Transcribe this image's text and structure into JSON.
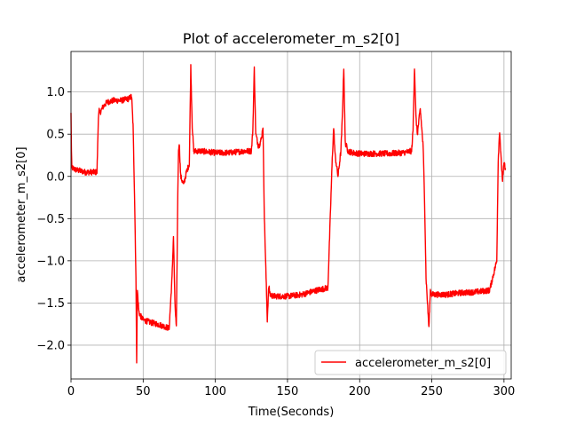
{
  "chart_data": {
    "type": "line",
    "title": "Plot of accelerometer_m_s2[0]",
    "xlabel": "Time(Seconds)",
    "ylabel": "accelerometer_m_s2[0]",
    "xlim": [
      0,
      305
    ],
    "ylim": [
      -2.4,
      1.48
    ],
    "xticks": [
      0,
      50,
      100,
      150,
      200,
      250,
      300
    ],
    "yticks": [
      -2.0,
      -1.5,
      -1.0,
      -0.5,
      0.0,
      0.5,
      1.0
    ],
    "xtick_labels": [
      "0",
      "50",
      "100",
      "150",
      "200",
      "250",
      "300"
    ],
    "ytick_labels": [
      "−2.0",
      "−1.5",
      "−1.0",
      "−0.5",
      "0.0",
      "0.5",
      "1.0"
    ],
    "grid": true,
    "legend_position": "bottom-right",
    "series": [
      {
        "name": "accelerometer_m_s2[0]",
        "color": "#ff0000",
        "noise": 0.035,
        "x": [
          0,
          0.3,
          0.6,
          1,
          3,
          10,
          18,
          19,
          19.5,
          20,
          22,
          25,
          30,
          35,
          40,
          42,
          43,
          44,
          45,
          45.5,
          46,
          47,
          48,
          50,
          55,
          60,
          65,
          68,
          70,
          71,
          72,
          73,
          74,
          74.5,
          75,
          76,
          78,
          80,
          82,
          83,
          84,
          85,
          90,
          100,
          110,
          120,
          125,
          126,
          127,
          128,
          130,
          132,
          133,
          134,
          135,
          136,
          137,
          138,
          140,
          150,
          160,
          170,
          178,
          180,
          181,
          182,
          183,
          185,
          187,
          188,
          189,
          190,
          192,
          195,
          200,
          210,
          220,
          230,
          236,
          237,
          238,
          239,
          240,
          242,
          244,
          245,
          246,
          247,
          248,
          249,
          250,
          260,
          270,
          280,
          290,
          295,
          296,
          297,
          298,
          299,
          300,
          301
        ],
        "y": [
          0.75,
          0.3,
          0.1,
          0.1,
          0.08,
          0.05,
          0.05,
          0.7,
          0.8,
          0.75,
          0.82,
          0.88,
          0.9,
          0.9,
          0.92,
          0.95,
          0.6,
          -0.2,
          -1.2,
          -2.2,
          -1.35,
          -1.6,
          -1.65,
          -1.7,
          -1.73,
          -1.75,
          -1.78,
          -1.8,
          -1.2,
          -0.7,
          -1.5,
          -1.8,
          -0.2,
          0.3,
          0.4,
          0.0,
          -0.1,
          0.05,
          0.15,
          1.3,
          0.6,
          0.3,
          0.3,
          0.28,
          0.28,
          0.3,
          0.3,
          0.55,
          1.28,
          0.5,
          0.35,
          0.45,
          0.6,
          -0.5,
          -1.1,
          -1.7,
          -1.3,
          -1.4,
          -1.42,
          -1.42,
          -1.4,
          -1.35,
          -1.32,
          -0.3,
          0.2,
          0.58,
          0.25,
          0.0,
          0.3,
          0.7,
          1.3,
          0.4,
          0.3,
          0.28,
          0.27,
          0.27,
          0.27,
          0.28,
          0.3,
          0.55,
          1.3,
          0.7,
          0.5,
          0.8,
          0.35,
          -0.3,
          -1.2,
          -1.5,
          -1.8,
          -1.35,
          -1.4,
          -1.4,
          -1.38,
          -1.37,
          -1.35,
          -1.0,
          0.2,
          0.55,
          0.2,
          -0.05,
          0.15,
          0.1
        ]
      }
    ]
  }
}
